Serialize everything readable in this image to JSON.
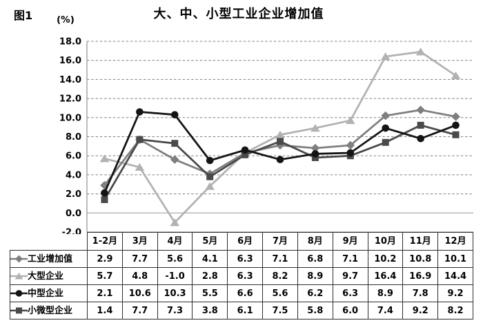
{
  "figure_label": "图1",
  "unit_label": "(%)",
  "title": "大、中、小型工业企业增加值",
  "colors": {
    "industry_total": "#7f7f7f",
    "large": "#b2b2b2",
    "medium": "#141414",
    "small_micro": "#4a4a4a",
    "gridline": "#808080",
    "zero_line": "#b3b3b3",
    "axis": "#999999",
    "table_border": "#2b2b2b"
  },
  "chart_data": {
    "type": "line",
    "title": "大、中、小型工业企业增加值",
    "unit_label": "(%)",
    "categories": [
      "1-2月",
      "3月",
      "4月",
      "5月",
      "6月",
      "7月",
      "8月",
      "9月",
      "10月",
      "11月",
      "12月"
    ],
    "series": [
      {
        "name": "工业增加值",
        "marker": "diamond",
        "color": "#7f7f7f",
        "values": [
          2.9,
          7.7,
          5.6,
          4.1,
          6.3,
          7.1,
          6.8,
          7.1,
          10.2,
          10.8,
          10.1
        ]
      },
      {
        "name": "大型企业",
        "marker": "triangle",
        "color": "#b2b2b2",
        "values": [
          5.7,
          4.8,
          -1.0,
          2.8,
          6.3,
          8.2,
          8.9,
          9.7,
          16.4,
          16.9,
          14.4
        ]
      },
      {
        "name": "中型企业",
        "marker": "circle",
        "color": "#141414",
        "values": [
          2.1,
          10.6,
          10.3,
          5.5,
          6.6,
          5.6,
          6.2,
          6.3,
          8.9,
          7.8,
          9.2
        ]
      },
      {
        "name": "小微型企业",
        "marker": "square",
        "color": "#4a4a4a",
        "values": [
          1.4,
          7.7,
          7.3,
          3.8,
          6.1,
          7.5,
          5.8,
          6.0,
          7.4,
          9.2,
          8.2
        ]
      }
    ],
    "ylim": [
      -2.0,
      18.0
    ],
    "ytick_step": 2.0,
    "yticks": [
      18.0,
      16.0,
      14.0,
      12.0,
      10.0,
      8.0,
      6.0,
      4.0,
      2.0,
      0.0,
      -2.0
    ],
    "grid": "horizontal-dashed, zero line solid",
    "legend_position": "table-left-column",
    "value_decimals": 1
  }
}
